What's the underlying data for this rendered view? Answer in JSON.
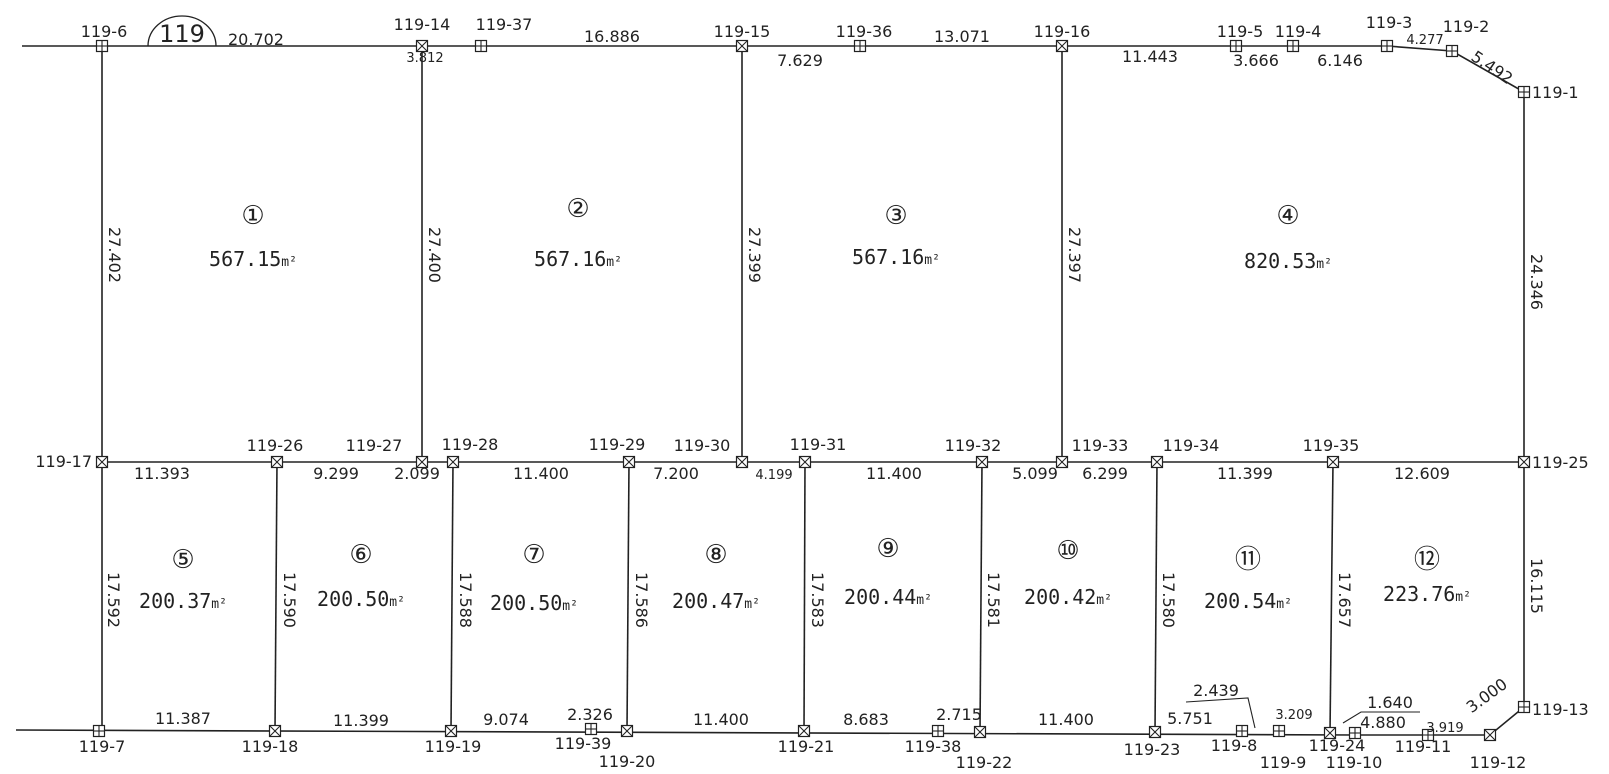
{
  "diagram": {
    "block_label": "119",
    "area_unit": "m²",
    "points": [
      {
        "id": "119-1",
        "type": "plus"
      },
      {
        "id": "119-2",
        "type": "plus"
      },
      {
        "id": "119-3",
        "type": "plus"
      },
      {
        "id": "119-4",
        "type": "plus"
      },
      {
        "id": "119-5",
        "type": "plus"
      },
      {
        "id": "119-6",
        "type": "plus"
      },
      {
        "id": "119-7",
        "type": "plus"
      },
      {
        "id": "119-8",
        "type": "plus"
      },
      {
        "id": "119-9",
        "type": "plus"
      },
      {
        "id": "119-10",
        "type": "plus"
      },
      {
        "id": "119-11",
        "type": "plus"
      },
      {
        "id": "119-12",
        "type": "cross"
      },
      {
        "id": "119-13",
        "type": "plus"
      },
      {
        "id": "119-14",
        "type": "cross"
      },
      {
        "id": "119-15",
        "type": "cross"
      },
      {
        "id": "119-16",
        "type": "cross"
      },
      {
        "id": "119-17",
        "type": "cross"
      },
      {
        "id": "119-18",
        "type": "cross"
      },
      {
        "id": "119-19",
        "type": "cross"
      },
      {
        "id": "119-20",
        "type": "cross"
      },
      {
        "id": "119-21",
        "type": "cross"
      },
      {
        "id": "119-22",
        "type": "cross"
      },
      {
        "id": "119-23",
        "type": "cross"
      },
      {
        "id": "119-24",
        "type": "cross"
      },
      {
        "id": "119-25",
        "type": "cross"
      },
      {
        "id": "119-26",
        "type": "cross"
      },
      {
        "id": "119-27",
        "type": "cross"
      },
      {
        "id": "119-28",
        "type": "cross"
      },
      {
        "id": "119-29",
        "type": "cross"
      },
      {
        "id": "119-30",
        "type": "cross"
      },
      {
        "id": "119-31",
        "type": "cross"
      },
      {
        "id": "119-32",
        "type": "cross"
      },
      {
        "id": "119-33",
        "type": "cross"
      },
      {
        "id": "119-34",
        "type": "cross"
      },
      {
        "id": "119-35",
        "type": "cross"
      },
      {
        "id": "119-36",
        "type": "plus"
      },
      {
        "id": "119-37",
        "type": "plus"
      },
      {
        "id": "119-38",
        "type": "plus"
      },
      {
        "id": "119-39",
        "type": "plus"
      }
    ],
    "lots": [
      {
        "num": "①",
        "area": "567.15"
      },
      {
        "num": "②",
        "area": "567.16"
      },
      {
        "num": "③",
        "area": "567.16"
      },
      {
        "num": "④",
        "area": "820.53"
      },
      {
        "num": "⑤",
        "area": "200.37"
      },
      {
        "num": "⑥",
        "area": "200.50"
      },
      {
        "num": "⑦",
        "area": "200.50"
      },
      {
        "num": "⑧",
        "area": "200.47"
      },
      {
        "num": "⑨",
        "area": "200.44"
      },
      {
        "num": "⑩",
        "area": "200.42"
      },
      {
        "num": "⑪",
        "area": "200.54"
      },
      {
        "num": "⑫",
        "area": "223.76"
      }
    ],
    "dimensions": {
      "top": [
        "20.702",
        "3.812",
        "16.886",
        "7.629",
        "13.071",
        "11.443",
        "3.666",
        "6.146",
        "4.277",
        "5.492"
      ],
      "middle": [
        "11.393",
        "9.299",
        "2.099",
        "11.400",
        "7.200",
        "4.199",
        "11.400",
        "5.099",
        "6.299",
        "11.399",
        "12.609"
      ],
      "bottom": [
        "11.387",
        "11.399",
        "9.074",
        "2.326",
        "11.400",
        "8.683",
        "2.715",
        "11.400",
        "5.751",
        "2.439",
        "3.209",
        "1.640",
        "4.880",
        "3.919",
        "3.000"
      ],
      "upper_verticals": [
        "27.402",
        "27.400",
        "27.399",
        "27.397",
        "24.346"
      ],
      "lower_verticals": [
        "17.592",
        "17.590",
        "17.588",
        "17.586",
        "17.583",
        "17.581",
        "17.580",
        "17.657",
        "16.115"
      ]
    }
  }
}
